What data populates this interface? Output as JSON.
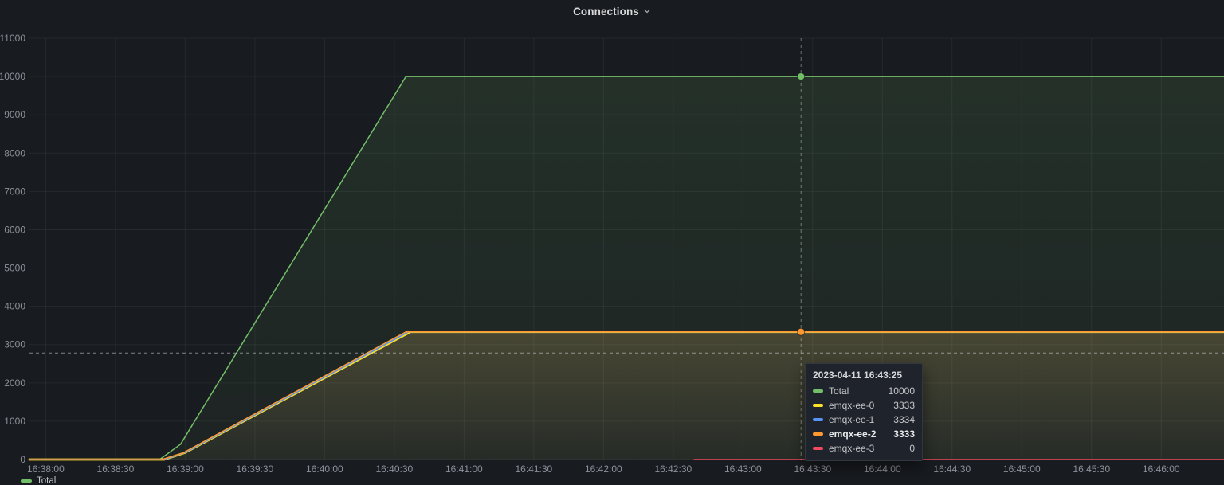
{
  "panel": {
    "title": "Connections"
  },
  "colors": {
    "background": "#181b1f",
    "grid": "rgba(255,255,255,0.06)",
    "axis_text": "rgba(204,204,220,0.65)",
    "crosshair_v": "rgba(255,255,255,0.38)",
    "crosshair_h": "rgba(216,217,222,0.55)"
  },
  "chart_data": {
    "type": "area",
    "title": "Connections",
    "ylabel": "",
    "xlabel": "",
    "ylim": [
      0,
      11000
    ],
    "y_ticks": [
      0,
      1000,
      2000,
      3000,
      4000,
      5000,
      6000,
      7000,
      8000,
      9000,
      10000,
      11000
    ],
    "x_ticks": [
      "16:38:00",
      "16:38:30",
      "16:39:00",
      "16:39:30",
      "16:40:00",
      "16:40:30",
      "16:41:00",
      "16:41:30",
      "16:42:00",
      "16:42:30",
      "16:43:00",
      "16:43:30",
      "16:44:00",
      "16:44:30",
      "16:45:00",
      "16:45:30",
      "16:46:00"
    ],
    "x_tick_interval_s": 30,
    "x_range_s": [
      -7,
      507
    ],
    "grid": true,
    "legend_position": "bottom-left",
    "series": [
      {
        "name": "Total",
        "color": "#73bf69",
        "width": 1.5,
        "fill_opacity": [
          0.13,
          0.05
        ],
        "points": [
          [
            -7,
            0
          ],
          [
            49,
            0
          ],
          [
            58,
            400
          ],
          [
            155,
            10000
          ],
          [
            507,
            10000
          ]
        ]
      },
      {
        "name": "emqx-ee-0",
        "color": "#fade2a",
        "width": 2.8,
        "fill_opacity": [
          0.09,
          0.02
        ],
        "points": [
          [
            -7,
            0
          ],
          [
            51,
            0
          ],
          [
            60,
            180
          ],
          [
            157,
            3333
          ],
          [
            507,
            3333
          ]
        ]
      },
      {
        "name": "emqx-ee-1",
        "color": "#5794f2",
        "width": 1.9,
        "fill_opacity": [
          0.07,
          0.02
        ],
        "points": [
          [
            -7,
            0
          ],
          [
            51,
            0
          ],
          [
            60,
            190
          ],
          [
            156,
            3334
          ],
          [
            507,
            3334
          ]
        ]
      },
      {
        "name": "emqx-ee-2",
        "color": "#ff9830",
        "width": 1.5,
        "fill_opacity": [
          0.09,
          0.02
        ],
        "points": [
          [
            -7,
            0
          ],
          [
            50,
            0
          ],
          [
            59,
            170
          ],
          [
            155,
            3333
          ],
          [
            507,
            3333
          ]
        ]
      },
      {
        "name": "emqx-ee-3",
        "color": "#f2495c",
        "width": 1.4,
        "fill_opacity": [
          0,
          0
        ],
        "points": [
          [
            279,
            0
          ],
          [
            507,
            0
          ]
        ]
      }
    ],
    "crosshair": {
      "time_label": "16:43:25",
      "time_s": 325,
      "y_value": 2780
    },
    "markers": [
      {
        "series": "Total",
        "time_s": 325,
        "value": 10000
      },
      {
        "series": "emqx-ee-2",
        "time_s": 325,
        "value": 3333
      }
    ]
  },
  "tooltip": {
    "timestamp": "2023-04-11 16:43:25",
    "rows": [
      {
        "name": "Total",
        "value": "10000",
        "color": "#73bf69",
        "bold": false
      },
      {
        "name": "emqx-ee-0",
        "value": "3333",
        "color": "#fade2a",
        "bold": false
      },
      {
        "name": "emqx-ee-1",
        "value": "3334",
        "color": "#5794f2",
        "bold": false
      },
      {
        "name": "emqx-ee-2",
        "value": "3333",
        "color": "#ff9830",
        "bold": true
      },
      {
        "name": "emqx-ee-3",
        "value": "0",
        "color": "#f2495c",
        "bold": false
      }
    ]
  },
  "legend": {
    "items": [
      {
        "label": "Total",
        "color": "#73bf69"
      }
    ]
  }
}
